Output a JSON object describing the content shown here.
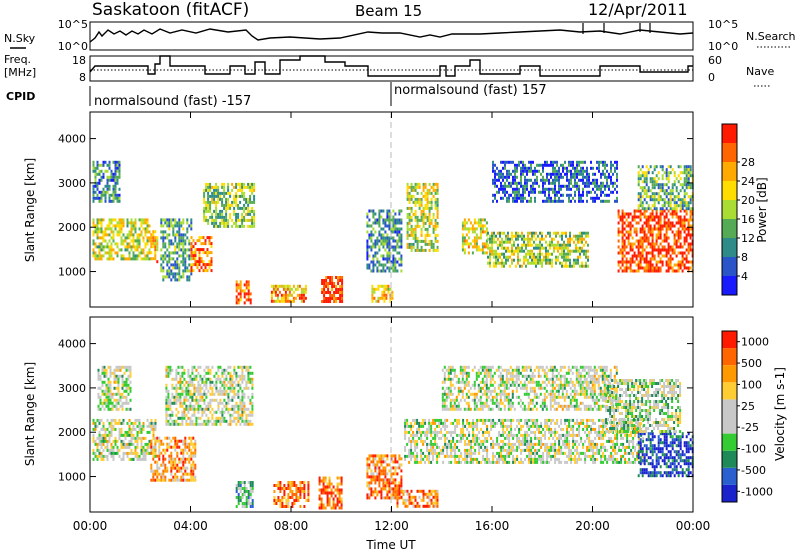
{
  "header": {
    "station": "Saskatoon (fitACF)",
    "beam": "Beam 15",
    "date": "12/Apr/2011"
  },
  "side_labels": {
    "nsky": "N.Sky",
    "freq_line1": "Freq.",
    "freq_line2": "[MHz]",
    "cpid": "CPID",
    "nsearch": "N.Search",
    "nave": "Nave"
  },
  "strip_axes": {
    "nsky_ticks": [
      "10^5",
      "10^0"
    ],
    "nsearch_ticks": [
      "10^5",
      "10^0"
    ],
    "freq_ticks": [
      "18",
      "8"
    ],
    "nave_ticks": [
      "60",
      "0"
    ]
  },
  "cpid": [
    {
      "label": "normalsound (fast) -157",
      "start_hour": 0
    },
    {
      "label": "normalsound (fast) 157",
      "start_hour": 12
    }
  ],
  "chart_data": [
    {
      "type": "heatmap",
      "title": "",
      "ylabel": "Slant Range [km]",
      "xlabel": "",
      "ylim": [
        200,
        4600
      ],
      "y_ticks": [
        "1000",
        "2000",
        "3000",
        "4000"
      ],
      "colorbar": {
        "label": "Power [dB]",
        "ticks": [
          "4",
          "8",
          "12",
          "16",
          "20",
          "24",
          "28"
        ],
        "colors": [
          "#1a1aff",
          "#2a55c8",
          "#2d8c87",
          "#55aa55",
          "#aadd33",
          "#ffdd00",
          "#ffaa00",
          "#ff6600",
          "#ff1a00"
        ]
      },
      "regions": [
        {
          "x": [
            0.1,
            2.4
          ],
          "y": [
            1300,
            2200
          ],
          "level": 0.55
        },
        {
          "x": [
            0.1,
            1.2
          ],
          "y": [
            2600,
            3500
          ],
          "level": 0.3
        },
        {
          "x": [
            2.4,
            2.7
          ],
          "y": [
            1200,
            2000
          ],
          "level": 0.7
        },
        {
          "x": [
            2.8,
            4.0
          ],
          "y": [
            800,
            2200
          ],
          "level": 0.35
        },
        {
          "x": [
            4.0,
            4.8
          ],
          "y": [
            1000,
            1800
          ],
          "level": 0.8
        },
        {
          "x": [
            4.5,
            6.5
          ],
          "y": [
            2000,
            3000
          ],
          "level": 0.45
        },
        {
          "x": [
            5.8,
            6.4
          ],
          "y": [
            300,
            800
          ],
          "level": 0.85
        },
        {
          "x": [
            7.2,
            8.6
          ],
          "y": [
            300,
            700
          ],
          "level": 0.7
        },
        {
          "x": [
            9.2,
            10.0
          ],
          "y": [
            300,
            900
          ],
          "level": 0.95
        },
        {
          "x": [
            11.2,
            12.0
          ],
          "y": [
            300,
            700
          ],
          "level": 0.65
        },
        {
          "x": [
            11.0,
            12.4
          ],
          "y": [
            1000,
            2400
          ],
          "level": 0.3
        },
        {
          "x": [
            12.6,
            13.8
          ],
          "y": [
            1500,
            3000
          ],
          "level": 0.55
        },
        {
          "x": [
            14.8,
            15.8
          ],
          "y": [
            1400,
            2200
          ],
          "level": 0.6
        },
        {
          "x": [
            15.8,
            19.8
          ],
          "y": [
            1100,
            1900
          ],
          "level": 0.5
        },
        {
          "x": [
            16.0,
            21.0
          ],
          "y": [
            2600,
            3500
          ],
          "level": 0.2
        },
        {
          "x": [
            21.0,
            24.0
          ],
          "y": [
            1000,
            2400
          ],
          "level": 0.9
        },
        {
          "x": [
            21.8,
            24.0
          ],
          "y": [
            2400,
            3400
          ],
          "level": 0.4
        }
      ]
    },
    {
      "type": "heatmap",
      "title": "",
      "ylabel": "Slant Range [km]",
      "xlabel": "Time UT",
      "ylim": [
        200,
        4600
      ],
      "y_ticks": [
        "1000",
        "2000",
        "3000",
        "4000"
      ],
      "x_ticks": [
        "00:00",
        "04:00",
        "08:00",
        "12:00",
        "16:00",
        "20:00",
        "00:00"
      ],
      "colorbar": {
        "label": "Velocity [m s-1]",
        "ticks": [
          "1000",
          "500",
          "100",
          "25",
          "-25",
          "-100",
          "-500",
          "-1000"
        ],
        "colors": [
          "#1a22cc",
          "#2a5fd0",
          "#1e8a5a",
          "#33cc33",
          "#c8c8c8",
          "#c8c8c8",
          "#ffcc33",
          "#ff9900",
          "#ff6600",
          "#ff1a00"
        ]
      },
      "regions": [
        {
          "x": [
            0.1,
            2.6
          ],
          "y": [
            1400,
            2300
          ],
          "level": 0.5
        },
        {
          "x": [
            0.3,
            1.6
          ],
          "y": [
            2500,
            3500
          ],
          "level": 0.5
        },
        {
          "x": [
            2.4,
            4.2
          ],
          "y": [
            900,
            1900
          ],
          "level": 0.75
        },
        {
          "x": [
            3.0,
            6.5
          ],
          "y": [
            2200,
            3500
          ],
          "level": 0.5
        },
        {
          "x": [
            5.8,
            6.5
          ],
          "y": [
            300,
            900
          ],
          "level": 0.35
        },
        {
          "x": [
            7.3,
            8.7
          ],
          "y": [
            300,
            900
          ],
          "level": 0.82
        },
        {
          "x": [
            9.1,
            10.0
          ],
          "y": [
            300,
            1000
          ],
          "level": 0.85
        },
        {
          "x": [
            11.0,
            12.4
          ],
          "y": [
            500,
            1500
          ],
          "level": 0.8
        },
        {
          "x": [
            12.2,
            13.8
          ],
          "y": [
            300,
            700
          ],
          "level": 0.78
        },
        {
          "x": [
            12.5,
            22.0
          ],
          "y": [
            1300,
            2300
          ],
          "level": 0.5
        },
        {
          "x": [
            14.0,
            21.0
          ],
          "y": [
            2500,
            3500
          ],
          "level": 0.5
        },
        {
          "x": [
            21.8,
            24.0
          ],
          "y": [
            1000,
            2000
          ],
          "level": 0.08
        },
        {
          "x": [
            20.5,
            23.5
          ],
          "y": [
            2000,
            3200
          ],
          "level": 0.45
        }
      ]
    }
  ]
}
